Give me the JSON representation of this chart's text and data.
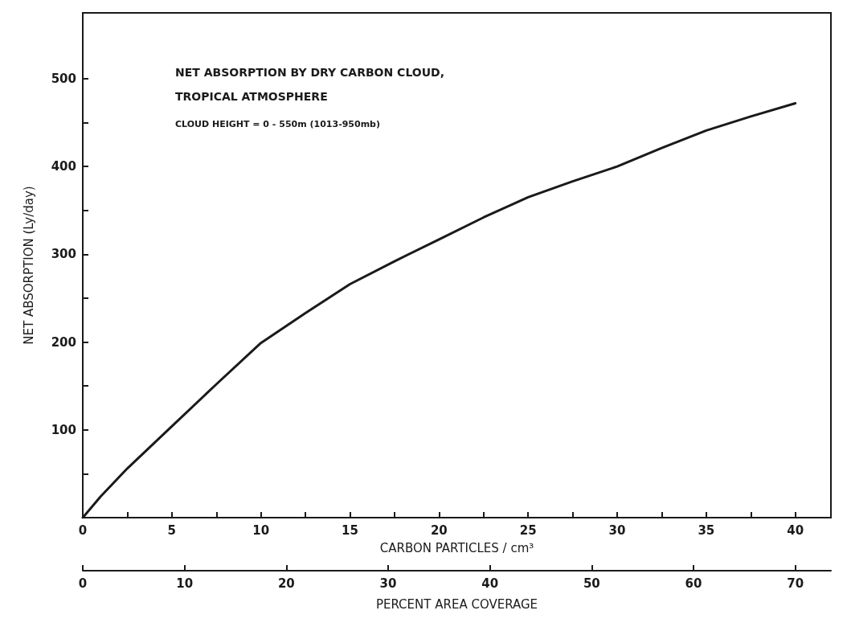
{
  "chart_data": {
    "type": "line",
    "title": "NET ABSORPTION BY DRY CARBON CLOUD,\nTROPICAL ATMOSPHERE",
    "subtitle": "CLOUD HEIGHT = 0 - 550m (1013-950mb)",
    "xlabel": "CARBON PARTICLES / cm³",
    "ylabel": "NET ABSORPTION (Ly/day)",
    "x2label": "PERCENT AREA COVERAGE",
    "x": [
      0,
      1,
      2.5,
      5,
      7.5,
      10,
      12.5,
      15,
      17.5,
      20,
      22.5,
      25,
      27.5,
      30,
      32.5,
      35,
      37.5,
      40
    ],
    "series": [
      {
        "color": "#1a1a1a",
        "values": [
          0,
          24,
          56,
          104,
          152,
          199,
          233,
          266,
          292,
          317,
          342,
          365,
          383,
          400,
          421,
          441,
          457,
          472
        ]
      }
    ],
    "xlim": [
      0,
      42
    ],
    "ylim": [
      0,
      575
    ],
    "x2lim": [
      0,
      73.5
    ],
    "xticks": [
      0,
      {
        "value": 2.5,
        "label": null
      },
      5,
      {
        "value": 7.5,
        "label": null
      },
      10,
      {
        "value": 12.5,
        "label": null
      },
      15,
      {
        "value": 17.5,
        "label": null
      },
      20,
      {
        "value": 22.5,
        "label": null
      },
      25,
      {
        "value": 27.5,
        "label": null
      },
      30,
      {
        "value": 32.5,
        "label": null
      },
      35,
      {
        "value": 37.5,
        "label": null
      },
      40
    ],
    "yticks": [
      {
        "value": 50,
        "label": null
      },
      100,
      {
        "value": 150,
        "label": null
      },
      200,
      {
        "value": 250,
        "label": null
      },
      300,
      {
        "value": 350,
        "label": null
      },
      400,
      {
        "value": 450,
        "label": null
      },
      500
    ],
    "x2ticks": [
      0,
      10,
      20,
      30,
      40,
      50,
      60,
      70
    ],
    "grid": false,
    "marker": "none",
    "line_style": "solid"
  }
}
